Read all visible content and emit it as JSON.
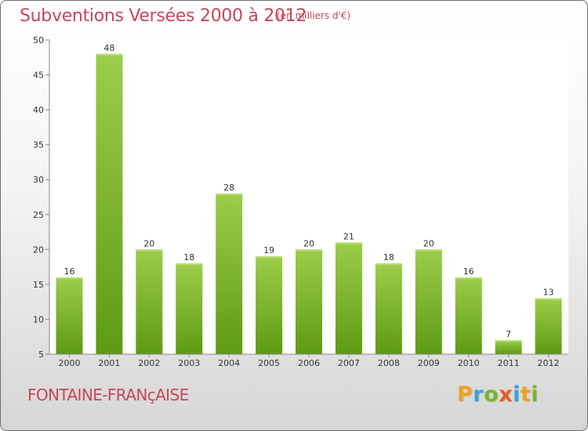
{
  "chart_data": {
    "type": "bar",
    "title": "Subventions Versées 2000 à 2012",
    "subtitle": "(en milliers d'€)",
    "categories": [
      "2000",
      "2001",
      "2002",
      "2003",
      "2004",
      "2005",
      "2006",
      "2007",
      "2008",
      "2009",
      "2010",
      "2011",
      "2012"
    ],
    "values": [
      16,
      48,
      20,
      18,
      28,
      19,
      20,
      21,
      18,
      20,
      16,
      7,
      13
    ],
    "ylim": [
      5,
      50
    ],
    "yticks": [
      5,
      10,
      15,
      20,
      25,
      30,
      35,
      40,
      45,
      50
    ],
    "xlabel": "",
    "ylabel": "",
    "grid": false,
    "bar_color": "#7ab52a"
  },
  "footer": {
    "commune": "FONTAINE-FRANçAISE",
    "logo_letters": [
      "P",
      "r",
      "o",
      "x",
      "i",
      "t",
      "i"
    ],
    "logo_colors": [
      "#f0a020",
      "#3da0d8",
      "#7ab52a",
      "#e85a2a",
      "#3da0d8",
      "#f0a020",
      "#7ab52a"
    ]
  }
}
